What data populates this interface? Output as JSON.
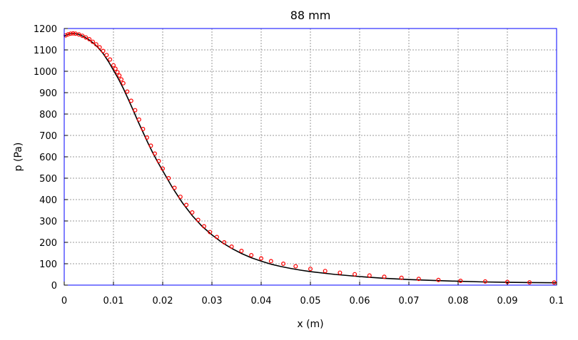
{
  "chart_data": {
    "type": "line",
    "title": "88 mm",
    "xlabel": "x (m)",
    "ylabel": "p (Pa)",
    "xlim": [
      0,
      0.1
    ],
    "ylim": [
      0,
      1200
    ],
    "xticks": [
      "0",
      "0.01",
      "0.02",
      "0.03",
      "0.04",
      "0.05",
      "0.06",
      "0.07",
      "0.08",
      "0.09",
      "0.1"
    ],
    "yticks": [
      "0",
      "100",
      "200",
      "300",
      "400",
      "500",
      "600",
      "700",
      "800",
      "900",
      "1000",
      "1100",
      "1200"
    ],
    "grid": true,
    "series": [
      {
        "style": "line",
        "color": "#000000",
        "x": [
          0,
          0.001,
          0.002,
          0.003,
          0.004,
          0.005,
          0.006,
          0.007,
          0.008,
          0.009,
          0.01,
          0.011,
          0.012,
          0.013,
          0.014,
          0.015,
          0.016,
          0.017,
          0.018,
          0.019,
          0.02,
          0.022,
          0.024,
          0.026,
          0.028,
          0.03,
          0.032,
          0.034,
          0.036,
          0.038,
          0.04,
          0.042,
          0.044,
          0.046,
          0.048,
          0.05,
          0.055,
          0.06,
          0.065,
          0.07,
          0.075,
          0.08,
          0.085,
          0.09,
          0.095,
          0.1
        ],
        "y": [
          1165,
          1175,
          1177,
          1172,
          1162,
          1148,
          1130,
          1108,
          1080,
          1045,
          1005,
          965,
          920,
          870,
          818,
          765,
          715,
          665,
          618,
          575,
          535,
          455,
          385,
          325,
          275,
          235,
          200,
          172,
          148,
          128,
          112,
          98,
          87,
          78,
          70,
          63,
          50,
          40,
          32,
          26,
          22,
          18,
          15,
          13,
          12,
          11
        ]
      },
      {
        "style": "markers",
        "color": "#ff0000",
        "x": [
          0.0003,
          0.0008,
          0.0013,
          0.0018,
          0.0023,
          0.003,
          0.0037,
          0.0044,
          0.0051,
          0.0058,
          0.0065,
          0.0072,
          0.0079,
          0.0086,
          0.0093,
          0.01,
          0.0104,
          0.0108,
          0.0112,
          0.0116,
          0.012,
          0.0128,
          0.0136,
          0.0144,
          0.0152,
          0.016,
          0.0168,
          0.0176,
          0.0184,
          0.0192,
          0.02,
          0.0212,
          0.0224,
          0.0236,
          0.0248,
          0.026,
          0.0272,
          0.0284,
          0.0296,
          0.031,
          0.0325,
          0.034,
          0.036,
          0.038,
          0.04,
          0.042,
          0.0445,
          0.047,
          0.05,
          0.053,
          0.056,
          0.059,
          0.062,
          0.065,
          0.0685,
          0.072,
          0.076,
          0.0805,
          0.0855,
          0.09,
          0.0945,
          0.0995
        ],
        "y": [
          1168,
          1173,
          1176,
          1177,
          1176,
          1172,
          1166,
          1158,
          1150,
          1138,
          1126,
          1112,
          1095,
          1076,
          1055,
          1028,
          1012,
          996,
          980,
          962,
          944,
          905,
          862,
          818,
          774,
          730,
          690,
          652,
          615,
          580,
          545,
          500,
          455,
          413,
          375,
          340,
          305,
          275,
          248,
          225,
          200,
          180,
          160,
          140,
          125,
          112,
          100,
          88,
          76,
          66,
          58,
          51,
          45,
          39,
          34,
          29,
          24,
          20,
          17,
          15,
          13,
          12
        ]
      }
    ]
  }
}
